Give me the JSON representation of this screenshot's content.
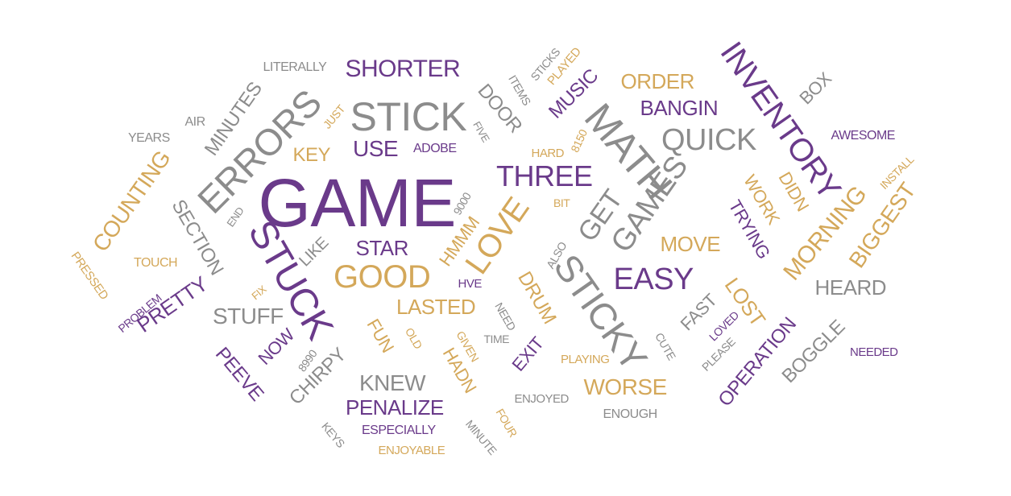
{
  "colors": {
    "purple": "#6a3a8a",
    "gray": "#8c8c8c",
    "gold": "#d4a85a"
  },
  "words": [
    {
      "text": "GAME",
      "color": "purple"
    },
    {
      "text": "STICK",
      "color": "gray"
    },
    {
      "text": "STUCK",
      "color": "purple"
    },
    {
      "text": "ERRORS",
      "color": "gray"
    },
    {
      "text": "MATH",
      "color": "gray"
    },
    {
      "text": "STICKY",
      "color": "gray"
    },
    {
      "text": "INVENTORY",
      "color": "purple"
    },
    {
      "text": "THREE",
      "color": "purple"
    },
    {
      "text": "LOVE",
      "color": "gold"
    },
    {
      "text": "GOOD",
      "color": "gold"
    },
    {
      "text": "QUICK",
      "color": "gray"
    },
    {
      "text": "EASY",
      "color": "purple"
    },
    {
      "text": "GAMES",
      "color": "gray"
    },
    {
      "text": "GET",
      "color": "gray"
    },
    {
      "text": "SHORTER",
      "color": "purple"
    },
    {
      "text": "COUNTING",
      "color": "gold"
    },
    {
      "text": "MORNING",
      "color": "gold"
    },
    {
      "text": "BIGGEST",
      "color": "gold"
    },
    {
      "text": "USE",
      "color": "purple"
    },
    {
      "text": "STAR",
      "color": "purple"
    },
    {
      "text": "LASTED",
      "color": "gold"
    },
    {
      "text": "MOVE",
      "color": "gold"
    },
    {
      "text": "ORDER",
      "color": "gold"
    },
    {
      "text": "BANGIN",
      "color": "purple"
    },
    {
      "text": "HEARD",
      "color": "gray"
    },
    {
      "text": "WORSE",
      "color": "gold"
    },
    {
      "text": "KNEW",
      "color": "gray"
    },
    {
      "text": "PENALIZE",
      "color": "purple"
    },
    {
      "text": "STUFF",
      "color": "gray"
    },
    {
      "text": "PRETTY",
      "color": "purple"
    },
    {
      "text": "MINUTES",
      "color": "gray"
    },
    {
      "text": "SECTION",
      "color": "gray"
    },
    {
      "text": "DOOR",
      "color": "gray"
    },
    {
      "text": "MUSIC",
      "color": "purple"
    },
    {
      "text": "KEY",
      "color": "gold"
    },
    {
      "text": "OPERATION",
      "color": "purple"
    },
    {
      "text": "BOGGLE",
      "color": "gray"
    },
    {
      "text": "DRUM",
      "color": "gold"
    },
    {
      "text": "HMMM",
      "color": "gold"
    },
    {
      "text": "LOST",
      "color": "gold"
    },
    {
      "text": "TRYING",
      "color": "purple"
    },
    {
      "text": "WORK",
      "color": "gold"
    },
    {
      "text": "DIDN",
      "color": "gold"
    },
    {
      "text": "CHIRPY",
      "color": "gray"
    },
    {
      "text": "PEEVE",
      "color": "purple"
    },
    {
      "text": "NOW",
      "color": "purple"
    },
    {
      "text": "FUN",
      "color": "gold"
    },
    {
      "text": "HADN",
      "color": "gold"
    },
    {
      "text": "EXIT",
      "color": "purple"
    },
    {
      "text": "FAST",
      "color": "gray"
    },
    {
      "text": "BOX",
      "color": "gray"
    },
    {
      "text": "LIKE",
      "color": "gray"
    },
    {
      "text": "LITERALLY",
      "color": "gray"
    },
    {
      "text": "AWESOME",
      "color": "purple"
    },
    {
      "text": "ADOBE",
      "color": "purple"
    },
    {
      "text": "YEARS",
      "color": "gray"
    },
    {
      "text": "AIR",
      "color": "gray"
    },
    {
      "text": "JUST",
      "color": "gold"
    },
    {
      "text": "FIVE",
      "color": "gray"
    },
    {
      "text": "ITEMS",
      "color": "gray"
    },
    {
      "text": "STICKS",
      "color": "gray"
    },
    {
      "text": "PLAYED",
      "color": "gold"
    },
    {
      "text": "HARD",
      "color": "gold"
    },
    {
      "text": "8150",
      "color": "gold"
    },
    {
      "text": "BIT",
      "color": "gold"
    },
    {
      "text": "9000",
      "color": "gray"
    },
    {
      "text": "END",
      "color": "gray"
    },
    {
      "text": "TOUCH",
      "color": "gold"
    },
    {
      "text": "PRESSED",
      "color": "gold"
    },
    {
      "text": "PROBLEM",
      "color": "purple"
    },
    {
      "text": "FIX",
      "color": "gold"
    },
    {
      "text": "ALSO",
      "color": "gray"
    },
    {
      "text": "HVE",
      "color": "purple"
    },
    {
      "text": "NEED",
      "color": "gray"
    },
    {
      "text": "TIME",
      "color": "gray"
    },
    {
      "text": "OLD",
      "color": "gold"
    },
    {
      "text": "GIVEN",
      "color": "gold"
    },
    {
      "text": "8990",
      "color": "gray"
    },
    {
      "text": "PLAYING",
      "color": "gold"
    },
    {
      "text": "CUTE",
      "color": "gray"
    },
    {
      "text": "LOVED",
      "color": "purple"
    },
    {
      "text": "PLEASE",
      "color": "gray"
    },
    {
      "text": "NEEDED",
      "color": "purple"
    },
    {
      "text": "INSTALL",
      "color": "gold"
    },
    {
      "text": "ENJOYED",
      "color": "gray"
    },
    {
      "text": "ENOUGH",
      "color": "gray"
    },
    {
      "text": "FOUR",
      "color": "gold"
    },
    {
      "text": "MINUTE",
      "color": "gray"
    },
    {
      "text": "ESPECIALLY",
      "color": "purple"
    },
    {
      "text": "ENJOYABLE",
      "color": "gold"
    },
    {
      "text": "KEYS",
      "color": "gray"
    }
  ]
}
